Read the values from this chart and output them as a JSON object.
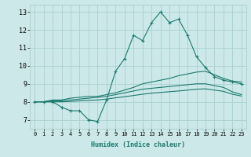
{
  "xlabel": "Humidex (Indice chaleur)",
  "x_values": [
    0,
    1,
    2,
    3,
    4,
    5,
    6,
    7,
    8,
    9,
    10,
    11,
    12,
    13,
    14,
    15,
    16,
    17,
    18,
    19,
    20,
    21,
    22,
    23
  ],
  "line1": [
    8.0,
    8.0,
    8.0,
    7.7,
    7.5,
    7.5,
    7.0,
    6.9,
    8.1,
    9.7,
    10.4,
    11.7,
    11.4,
    12.4,
    13.0,
    12.4,
    12.6,
    11.7,
    10.5,
    9.9,
    9.4,
    9.2,
    9.1,
    9.0
  ],
  "line2": [
    8.0,
    8.0,
    8.1,
    8.1,
    8.2,
    8.25,
    8.3,
    8.3,
    8.4,
    8.5,
    8.65,
    8.8,
    9.0,
    9.1,
    9.2,
    9.3,
    9.45,
    9.55,
    9.65,
    9.7,
    9.5,
    9.3,
    9.15,
    9.1
  ],
  "line3": [
    8.0,
    8.0,
    8.05,
    8.05,
    8.1,
    8.15,
    8.2,
    8.25,
    8.3,
    8.4,
    8.5,
    8.6,
    8.7,
    8.75,
    8.8,
    8.85,
    8.9,
    8.95,
    9.0,
    9.0,
    8.9,
    8.8,
    8.55,
    8.4
  ],
  "line4": [
    8.0,
    8.0,
    8.0,
    8.0,
    8.02,
    8.05,
    8.08,
    8.1,
    8.15,
    8.22,
    8.28,
    8.35,
    8.42,
    8.48,
    8.52,
    8.56,
    8.6,
    8.65,
    8.7,
    8.72,
    8.65,
    8.58,
    8.42,
    8.32
  ],
  "line_color": "#1a7a6e",
  "bg_color": "#cce8e8",
  "grid_color": "#aacfcf",
  "ylim": [
    6.5,
    13.4
  ],
  "yticks": [
    7,
    8,
    9,
    10,
    11,
    12,
    13
  ],
  "xlim": [
    -0.5,
    23.5
  ],
  "xticks": [
    0,
    1,
    2,
    3,
    4,
    5,
    6,
    7,
    8,
    9,
    10,
    11,
    12,
    13,
    14,
    15,
    16,
    17,
    18,
    19,
    20,
    21,
    22,
    23
  ]
}
